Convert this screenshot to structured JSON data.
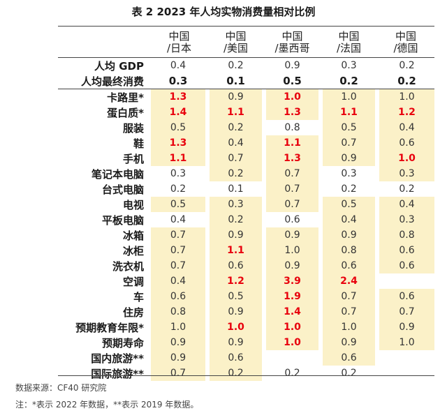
{
  "title": "表 2 2023 年人均实物消费量相对比例",
  "columns": [
    {
      "line1": "中国",
      "line2": "/日本"
    },
    {
      "line1": "中国",
      "line2": "/美国"
    },
    {
      "line1": "中国",
      "line2": "/墨西哥"
    },
    {
      "line1": "中国",
      "line2": "/法国"
    },
    {
      "line1": "中国",
      "line2": "/德国"
    }
  ],
  "rows": [
    {
      "label": "人均 GDP",
      "values": [
        "0.4",
        "0.2",
        "0.9",
        "0.3",
        "0.2"
      ],
      "shaded": [
        false,
        false,
        false,
        false,
        false
      ],
      "highlight": [
        false,
        false,
        false,
        false,
        false
      ],
      "style": "normal"
    },
    {
      "label": "人均最终消费",
      "values": [
        "0.3",
        "0.1",
        "0.5",
        "0.2",
        "0.2"
      ],
      "shaded": [
        false,
        false,
        false,
        false,
        false
      ],
      "highlight": [
        false,
        false,
        false,
        false,
        false
      ],
      "style": "bold"
    },
    {
      "label": "卡路里*",
      "values": [
        "1.3",
        "0.9",
        "1.0",
        "1.0",
        "1.0"
      ],
      "shaded": [
        true,
        true,
        true,
        true,
        true
      ],
      "highlight": [
        true,
        false,
        true,
        false,
        false
      ]
    },
    {
      "label": "蛋白质*",
      "values": [
        "1.4",
        "1.1",
        "1.3",
        "1.1",
        "1.2"
      ],
      "shaded": [
        true,
        true,
        true,
        true,
        true
      ],
      "highlight": [
        true,
        true,
        true,
        true,
        true
      ]
    },
    {
      "label": "服装",
      "values": [
        "0.5",
        "0.2",
        "0.8",
        "0.5",
        "0.4"
      ],
      "shaded": [
        true,
        true,
        false,
        true,
        true
      ],
      "highlight": [
        false,
        false,
        false,
        false,
        false
      ]
    },
    {
      "label": "鞋",
      "values": [
        "1.3",
        "0.4",
        "1.1",
        "0.7",
        "0.6"
      ],
      "shaded": [
        true,
        true,
        true,
        true,
        true
      ],
      "highlight": [
        true,
        false,
        true,
        false,
        false
      ]
    },
    {
      "label": "手机",
      "values": [
        "1.1",
        "0.7",
        "1.3",
        "0.9",
        "1.0"
      ],
      "shaded": [
        true,
        true,
        true,
        true,
        true
      ],
      "highlight": [
        true,
        false,
        true,
        false,
        true
      ]
    },
    {
      "label": "笔记本电脑",
      "values": [
        "0.3",
        "0.2",
        "0.7",
        "0.3",
        "0.3"
      ],
      "shaded": [
        false,
        true,
        true,
        false,
        true
      ],
      "highlight": [
        false,
        false,
        false,
        false,
        false
      ]
    },
    {
      "label": "台式电脑",
      "values": [
        "0.2",
        "0.1",
        "0.7",
        "0.2",
        "0.2"
      ],
      "shaded": [
        false,
        false,
        true,
        false,
        false
      ],
      "highlight": [
        false,
        false,
        false,
        false,
        false
      ]
    },
    {
      "label": "电视",
      "values": [
        "0.5",
        "0.3",
        "0.7",
        "0.5",
        "0.4"
      ],
      "shaded": [
        true,
        true,
        true,
        true,
        true
      ],
      "highlight": [
        false,
        false,
        false,
        false,
        false
      ]
    },
    {
      "label": "平板电脑",
      "values": [
        "0.4",
        "0.2",
        "0.6",
        "0.4",
        "0.3"
      ],
      "shaded": [
        false,
        true,
        false,
        true,
        true
      ],
      "highlight": [
        false,
        false,
        false,
        false,
        false
      ]
    },
    {
      "label": "冰箱",
      "values": [
        "0.7",
        "0.9",
        "0.9",
        "0.9",
        "0.8"
      ],
      "shaded": [
        true,
        true,
        true,
        true,
        true
      ],
      "highlight": [
        false,
        false,
        false,
        false,
        false
      ]
    },
    {
      "label": "冰柜",
      "values": [
        "0.7",
        "1.1",
        "1.0",
        "0.8",
        "0.6"
      ],
      "shaded": [
        true,
        true,
        true,
        true,
        true
      ],
      "highlight": [
        false,
        true,
        false,
        false,
        false
      ]
    },
    {
      "label": "洗衣机",
      "values": [
        "0.7",
        "0.6",
        "0.9",
        "0.6",
        "0.6"
      ],
      "shaded": [
        true,
        true,
        true,
        true,
        true
      ],
      "highlight": [
        false,
        false,
        false,
        false,
        false
      ]
    },
    {
      "label": "空调",
      "values": [
        "0.4",
        "1.2",
        "3.9",
        "2.4",
        ""
      ],
      "shaded": [
        true,
        true,
        true,
        true,
        false
      ],
      "highlight": [
        false,
        true,
        true,
        true,
        false
      ]
    },
    {
      "label": "车",
      "values": [
        "0.6",
        "0.5",
        "1.9",
        "0.7",
        "0.6"
      ],
      "shaded": [
        true,
        true,
        true,
        true,
        true
      ],
      "highlight": [
        false,
        false,
        true,
        false,
        false
      ]
    },
    {
      "label": "住房",
      "values": [
        "0.8",
        "0.9",
        "1.4",
        "0.7",
        "0.7"
      ],
      "shaded": [
        true,
        true,
        true,
        true,
        true
      ],
      "highlight": [
        false,
        false,
        true,
        false,
        false
      ]
    },
    {
      "label": "预期教育年限*",
      "values": [
        "1.0",
        "1.0",
        "1.0",
        "1.0",
        "0.9"
      ],
      "shaded": [
        true,
        true,
        true,
        true,
        true
      ],
      "highlight": [
        false,
        true,
        true,
        false,
        false
      ]
    },
    {
      "label": "预期寿命",
      "values": [
        "0.9",
        "0.9",
        "1.0",
        "0.9",
        "1.0"
      ],
      "shaded": [
        true,
        true,
        true,
        true,
        true
      ],
      "highlight": [
        false,
        false,
        true,
        false,
        false
      ]
    },
    {
      "label": "国内旅游**",
      "values": [
        "0.9",
        "0.6",
        "",
        "0.6",
        ""
      ],
      "shaded": [
        true,
        true,
        false,
        true,
        false
      ],
      "highlight": [
        false,
        false,
        false,
        false,
        false
      ]
    },
    {
      "label": "国际旅游**",
      "values": [
        "0.7",
        "0.2",
        "0.2",
        "0.2",
        ""
      ],
      "shaded": [
        true,
        true,
        false,
        false,
        false
      ],
      "highlight": [
        false,
        false,
        false,
        false,
        false
      ]
    }
  ],
  "colors": {
    "shade": "#fbf1c8",
    "highlight": "#e8000d"
  },
  "footer": {
    "source": "数据来源：CF40 研究院",
    "note": "注：*表示 2022 年数据，**表示 2019 年数据。"
  }
}
